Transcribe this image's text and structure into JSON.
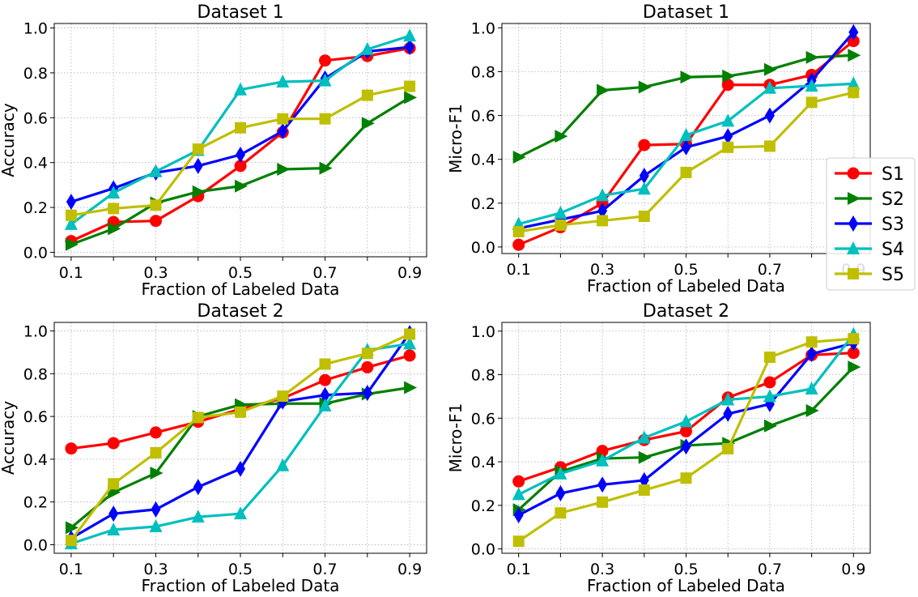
{
  "chart_data": [
    {
      "type": "line",
      "title": "Dataset 1",
      "xlabel": "Fraction of Labeled Data",
      "ylabel": "Accuracy",
      "x": [
        0.1,
        0.2,
        0.3,
        0.4,
        0.5,
        0.6,
        0.7,
        0.8,
        0.9
      ],
      "x_tick_labels": [
        "0.1",
        "0.3",
        "0.5",
        "0.7",
        "0.9"
      ],
      "y_tick_labels": [
        "0.0",
        "0.2",
        "0.4",
        "0.6",
        "0.8",
        "1.0"
      ],
      "xlim": [
        0.06,
        0.94
      ],
      "ylim": [
        -0.02,
        1.02
      ],
      "grid": true,
      "series": [
        {
          "name": "S1",
          "values": [
            0.05,
            0.135,
            0.14,
            0.25,
            0.385,
            0.535,
            0.855,
            0.875,
            0.91
          ]
        },
        {
          "name": "S2",
          "values": [
            0.035,
            0.105,
            0.22,
            0.27,
            0.295,
            0.37,
            0.375,
            0.575,
            0.69
          ]
        },
        {
          "name": "S3",
          "values": [
            0.225,
            0.285,
            0.355,
            0.385,
            0.435,
            0.54,
            0.775,
            0.895,
            0.915
          ]
        },
        {
          "name": "S4",
          "values": [
            0.125,
            0.265,
            0.36,
            0.455,
            0.725,
            0.76,
            0.765,
            0.905,
            0.965
          ]
        },
        {
          "name": "S5",
          "values": [
            0.165,
            0.195,
            0.21,
            0.46,
            0.555,
            0.595,
            0.595,
            0.7,
            0.74
          ]
        }
      ]
    },
    {
      "type": "line",
      "title": "Dataset 1",
      "xlabel": "Fraction of Labeled Data",
      "ylabel": "Micro-F1",
      "x": [
        0.1,
        0.2,
        0.3,
        0.4,
        0.5,
        0.6,
        0.7,
        0.8,
        0.9
      ],
      "x_tick_labels": [
        "0.1",
        "0.3",
        "0.5",
        "0.7",
        "0.9"
      ],
      "y_tick_labels": [
        "0.0",
        "0.2",
        "0.4",
        "0.6",
        "0.8",
        "1.0"
      ],
      "xlim": [
        0.06,
        0.94
      ],
      "ylim": [
        -0.03,
        1.02
      ],
      "grid": true,
      "series": [
        {
          "name": "S1",
          "values": [
            0.01,
            0.09,
            0.2,
            0.465,
            0.47,
            0.74,
            0.74,
            0.785,
            0.94
          ]
        },
        {
          "name": "S2",
          "values": [
            0.41,
            0.505,
            0.715,
            0.73,
            0.775,
            0.78,
            0.81,
            0.865,
            0.875
          ]
        },
        {
          "name": "S3",
          "values": [
            0.085,
            0.125,
            0.165,
            0.325,
            0.455,
            0.505,
            0.6,
            0.76,
            0.98
          ]
        },
        {
          "name": "S4",
          "values": [
            0.105,
            0.155,
            0.235,
            0.265,
            0.51,
            0.575,
            0.725,
            0.735,
            0.745
          ]
        },
        {
          "name": "S5",
          "values": [
            0.07,
            0.1,
            0.12,
            0.14,
            0.34,
            0.455,
            0.46,
            0.66,
            0.705
          ]
        }
      ]
    },
    {
      "type": "line",
      "title": "Dataset 2",
      "xlabel": "Fraction of Labeled Data",
      "ylabel": "Accuracy",
      "x": [
        0.1,
        0.2,
        0.3,
        0.4,
        0.5,
        0.6,
        0.7,
        0.8,
        0.9
      ],
      "x_tick_labels": [
        "0.1",
        "0.3",
        "0.5",
        "0.7",
        "0.9"
      ],
      "y_tick_labels": [
        "0.0",
        "0.2",
        "0.4",
        "0.6",
        "0.8",
        "1.0"
      ],
      "xlim": [
        0.06,
        0.94
      ],
      "ylim": [
        -0.04,
        1.04
      ],
      "grid": true,
      "series": [
        {
          "name": "S1",
          "values": [
            0.45,
            0.475,
            0.525,
            0.575,
            0.635,
            0.685,
            0.77,
            0.83,
            0.885
          ]
        },
        {
          "name": "S2",
          "values": [
            0.08,
            0.245,
            0.335,
            0.6,
            0.655,
            0.66,
            0.66,
            0.705,
            0.735
          ]
        },
        {
          "name": "S3",
          "values": [
            0.03,
            0.145,
            0.165,
            0.27,
            0.355,
            0.67,
            0.7,
            0.71,
            0.99
          ]
        },
        {
          "name": "S4",
          "values": [
            0.005,
            0.07,
            0.085,
            0.13,
            0.145,
            0.37,
            0.65,
            0.91,
            0.94
          ]
        },
        {
          "name": "S5",
          "values": [
            0.02,
            0.285,
            0.43,
            0.595,
            0.62,
            0.695,
            0.845,
            0.895,
            0.985
          ]
        }
      ]
    },
    {
      "type": "line",
      "title": "Dataset 2",
      "xlabel": "Fraction of Labeled Data",
      "ylabel": "Micro-F1",
      "x": [
        0.1,
        0.2,
        0.3,
        0.4,
        0.5,
        0.6,
        0.7,
        0.8,
        0.9
      ],
      "x_tick_labels": [
        "0.1",
        "0.3",
        "0.5",
        "0.7",
        "0.9"
      ],
      "y_tick_labels": [
        "0.0",
        "0.2",
        "0.4",
        "0.6",
        "0.8",
        "1.0"
      ],
      "xlim": [
        0.06,
        0.94
      ],
      "ylim": [
        -0.02,
        1.04
      ],
      "grid": true,
      "series": [
        {
          "name": "S1",
          "values": [
            0.31,
            0.375,
            0.45,
            0.5,
            0.54,
            0.695,
            0.765,
            0.89,
            0.9
          ]
        },
        {
          "name": "S2",
          "values": [
            0.18,
            0.355,
            0.415,
            0.42,
            0.475,
            0.485,
            0.565,
            0.635,
            0.835
          ]
        },
        {
          "name": "S3",
          "values": [
            0.155,
            0.255,
            0.295,
            0.315,
            0.47,
            0.62,
            0.665,
            0.895,
            0.945
          ]
        },
        {
          "name": "S4",
          "values": [
            0.25,
            0.345,
            0.405,
            0.51,
            0.585,
            0.685,
            0.7,
            0.735,
            0.985
          ]
        },
        {
          "name": "S5",
          "values": [
            0.035,
            0.165,
            0.215,
            0.27,
            0.325,
            0.46,
            0.88,
            0.95,
            0.965
          ]
        }
      ]
    }
  ],
  "legend": {
    "placement": "right, between upper and lower rows",
    "entries": [
      {
        "label": "S1",
        "color": "#ff0000",
        "marker": "circle"
      },
      {
        "label": "S2",
        "color": "#008000",
        "marker": "triangle-right"
      },
      {
        "label": "S3",
        "color": "#0000ff",
        "marker": "thin-diamond"
      },
      {
        "label": "S4",
        "color": "#00bfbf",
        "marker": "triangle-up"
      },
      {
        "label": "S5",
        "color": "#bfbf00",
        "marker": "square"
      }
    ]
  }
}
